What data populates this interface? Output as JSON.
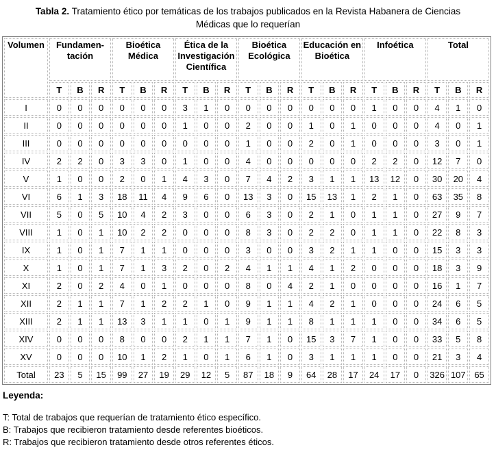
{
  "title": {
    "label": "Tabla 2.",
    "caption": "Tratamiento ético por temáticas de los trabajos publicados en la Revista Habanera de Ciencias Médicas que lo requerían"
  },
  "table": {
    "corner_header": "Volumen",
    "groups": [
      {
        "id": "fundamentacion",
        "label": "Fundamen-\ntación"
      },
      {
        "id": "bioetica-medica",
        "label": "Bioética\nMédica"
      },
      {
        "id": "etica-investigacion",
        "label": "Ética de la\nInvestigación\nCientífica"
      },
      {
        "id": "bioetica-ecologica",
        "label": "Bioética\nEcológica"
      },
      {
        "id": "educacion-bioetica",
        "label": "Educación en\nBioética"
      },
      {
        "id": "infoetica",
        "label": "Infoética"
      },
      {
        "id": "total",
        "label": "Total"
      }
    ],
    "subheaders": [
      "T",
      "B",
      "R"
    ],
    "rows": [
      {
        "volume": "I",
        "values": [
          0,
          0,
          0,
          0,
          0,
          0,
          3,
          1,
          0,
          0,
          0,
          0,
          0,
          0,
          0,
          1,
          0,
          0,
          4,
          1,
          0
        ]
      },
      {
        "volume": "II",
        "values": [
          0,
          0,
          0,
          0,
          0,
          0,
          1,
          0,
          0,
          2,
          0,
          0,
          1,
          0,
          1,
          0,
          0,
          0,
          4,
          0,
          1
        ]
      },
      {
        "volume": "III",
        "values": [
          0,
          0,
          0,
          0,
          0,
          0,
          0,
          0,
          0,
          1,
          0,
          0,
          2,
          0,
          1,
          0,
          0,
          0,
          3,
          0,
          1
        ]
      },
      {
        "volume": "IV",
        "values": [
          2,
          2,
          0,
          3,
          3,
          0,
          1,
          0,
          0,
          4,
          0,
          0,
          0,
          0,
          0,
          2,
          2,
          0,
          12,
          7,
          0
        ]
      },
      {
        "volume": "V",
        "values": [
          1,
          0,
          0,
          2,
          0,
          1,
          4,
          3,
          0,
          7,
          4,
          2,
          3,
          1,
          1,
          13,
          12,
          0,
          30,
          20,
          4
        ]
      },
      {
        "volume": "VI",
        "values": [
          6,
          1,
          3,
          18,
          11,
          4,
          9,
          6,
          0,
          13,
          3,
          0,
          15,
          13,
          1,
          2,
          1,
          0,
          63,
          35,
          8
        ]
      },
      {
        "volume": "VII",
        "values": [
          5,
          0,
          5,
          10,
          4,
          2,
          3,
          0,
          0,
          6,
          3,
          0,
          2,
          1,
          0,
          1,
          1,
          0,
          27,
          9,
          7
        ]
      },
      {
        "volume": "VIII",
        "values": [
          1,
          0,
          1,
          10,
          2,
          2,
          0,
          0,
          0,
          8,
          3,
          0,
          2,
          2,
          0,
          1,
          1,
          0,
          22,
          8,
          3
        ]
      },
      {
        "volume": "IX",
        "values": [
          1,
          0,
          1,
          7,
          1,
          1,
          0,
          0,
          0,
          3,
          0,
          0,
          3,
          2,
          1,
          1,
          0,
          0,
          15,
          3,
          3
        ]
      },
      {
        "volume": "X",
        "values": [
          1,
          0,
          1,
          7,
          1,
          3,
          2,
          0,
          2,
          4,
          1,
          1,
          4,
          1,
          2,
          0,
          0,
          0,
          18,
          3,
          9
        ]
      },
      {
        "volume": "XI",
        "values": [
          2,
          0,
          2,
          4,
          0,
          1,
          0,
          0,
          0,
          8,
          0,
          4,
          2,
          1,
          0,
          0,
          0,
          0,
          16,
          1,
          7
        ]
      },
      {
        "volume": "XII",
        "values": [
          2,
          1,
          1,
          7,
          1,
          2,
          2,
          1,
          0,
          9,
          1,
          1,
          4,
          2,
          1,
          0,
          0,
          0,
          24,
          6,
          5
        ]
      },
      {
        "volume": "XIII",
        "values": [
          2,
          1,
          1,
          13,
          3,
          1,
          1,
          0,
          1,
          9,
          1,
          1,
          8,
          1,
          1,
          1,
          0,
          0,
          34,
          6,
          5
        ]
      },
      {
        "volume": "XIV",
        "values": [
          0,
          0,
          0,
          8,
          0,
          0,
          2,
          1,
          1,
          7,
          1,
          0,
          15,
          3,
          7,
          1,
          0,
          0,
          33,
          5,
          8
        ]
      },
      {
        "volume": "XV",
        "values": [
          0,
          0,
          0,
          10,
          1,
          2,
          1,
          0,
          1,
          6,
          1,
          0,
          3,
          1,
          1,
          1,
          0,
          0,
          21,
          3,
          4
        ]
      }
    ],
    "total_row": {
      "label": "Total",
      "values": [
        23,
        5,
        15,
        99,
        27,
        19,
        29,
        12,
        5,
        87,
        18,
        9,
        64,
        28,
        17,
        24,
        17,
        0,
        326,
        107,
        65
      ]
    }
  },
  "legend": {
    "heading": "Leyenda:",
    "items": [
      "T: Total de trabajos que requerían de tratamiento ético específico.",
      "B: Trabajos que recibieron tratamiento desde referentes bioéticos.",
      "R: Trabajos que recibieron tratamiento desde otros referentes éticos."
    ]
  },
  "colors": {
    "outer_border": "#7f7f7f",
    "cell_border": "#b3b3b3",
    "text": "#000000",
    "background": "#ffffff"
  }
}
